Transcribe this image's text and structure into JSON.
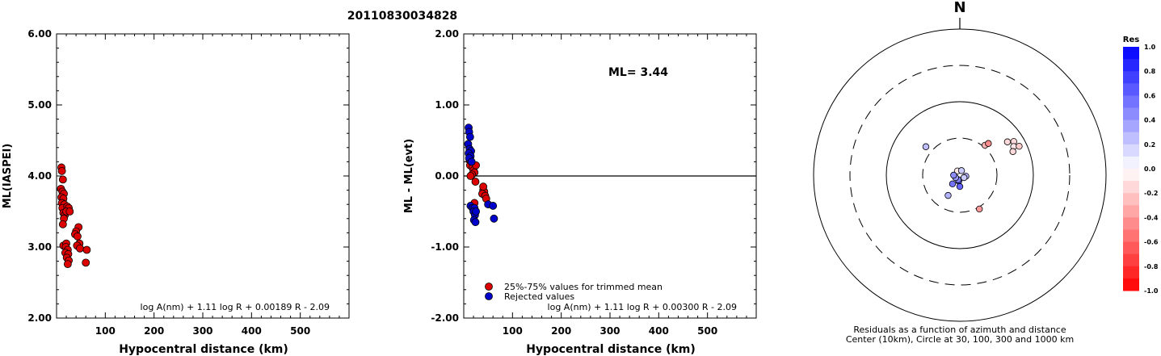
{
  "title": "20110830034828",
  "chart_data": [
    {
      "type": "scatter",
      "ylabel": "ML(IASPEI)",
      "xlabel": "Hypocentral distance (km)",
      "xlim": [
        0,
        600
      ],
      "ylim": [
        2.0,
        6.0
      ],
      "xticks": [
        "100",
        "200",
        "300",
        "400",
        "500"
      ],
      "yticks": [
        "2.00",
        "3.00",
        "4.00",
        "5.00",
        "6.00"
      ],
      "formula": "log A(nm) + 1.11 log R + 0.00189 R - 2.09",
      "series": [
        {
          "color": "#dd0000",
          "points": [
            [
              10,
              4.12
            ],
            [
              11,
              4.07
            ],
            [
              13,
              3.95
            ],
            [
              9,
              3.82
            ],
            [
              12,
              3.78
            ],
            [
              15,
              3.75
            ],
            [
              10,
              3.7
            ],
            [
              14,
              3.68
            ],
            [
              11,
              3.62
            ],
            [
              16,
              3.6
            ],
            [
              12,
              3.55
            ],
            [
              14,
              3.48
            ],
            [
              17,
              3.45
            ],
            [
              15,
              3.4
            ],
            [
              13,
              3.32
            ],
            [
              22,
              3.57
            ],
            [
              25,
              3.55
            ],
            [
              20,
              3.5
            ],
            [
              27,
              3.5
            ],
            [
              14,
              3.02
            ],
            [
              20,
              3.05
            ],
            [
              19,
              3.0
            ],
            [
              23,
              2.96
            ],
            [
              18,
              2.92
            ],
            [
              24,
              2.9
            ],
            [
              21,
              2.85
            ],
            [
              25,
              2.81
            ],
            [
              23,
              2.76
            ],
            [
              45,
              3.28
            ],
            [
              40,
              3.22
            ],
            [
              38,
              3.18
            ],
            [
              43,
              3.15
            ],
            [
              47,
              3.05
            ],
            [
              42,
              3.02
            ],
            [
              48,
              2.98
            ],
            [
              62,
              2.96
            ],
            [
              60,
              2.78
            ]
          ]
        }
      ]
    },
    {
      "type": "scatter",
      "ylabel": "ML - ML(evt)",
      "xlabel": "Hypocentral distance (km)",
      "xlim": [
        0,
        600
      ],
      "ylim": [
        -2.0,
        2.0
      ],
      "xticks": [
        "100",
        "200",
        "300",
        "400",
        "500"
      ],
      "yticks": [
        "-2.00",
        "-1.00",
        "0.00",
        "1.00",
        "2.00"
      ],
      "annotation": "ML= 3.44",
      "formula": "log A(nm) + 1.11 log R + 0.00300 R - 2.09",
      "legend": [
        "25%-75% values for trimmed mean",
        "Rejected values"
      ],
      "series": [
        {
          "name": "25%-75% values for trimmed mean",
          "color": "#dd0000",
          "points": [
            [
              12,
              0.22
            ],
            [
              15,
              0.2
            ],
            [
              13,
              0.15
            ],
            [
              18,
              0.12
            ],
            [
              20,
              0.08
            ],
            [
              22,
              0.05
            ],
            [
              25,
              0.15
            ],
            [
              17,
              0.02
            ],
            [
              14,
              0.0
            ],
            [
              24,
              -0.08
            ],
            [
              40,
              -0.2
            ],
            [
              42,
              -0.22
            ],
            [
              38,
              -0.25
            ],
            [
              44,
              -0.28
            ],
            [
              46,
              -0.32
            ],
            [
              40,
              -0.15
            ],
            [
              22,
              -0.38
            ]
          ]
        },
        {
          "name": "Rejected values",
          "color": "#0000cc",
          "points": [
            [
              10,
              0.68
            ],
            [
              11,
              0.62
            ],
            [
              13,
              0.55
            ],
            [
              9,
              0.45
            ],
            [
              12,
              0.38
            ],
            [
              15,
              0.35
            ],
            [
              10,
              0.32
            ],
            [
              14,
              0.28
            ],
            [
              11,
              0.25
            ],
            [
              16,
              0.2
            ],
            [
              14,
              -0.42
            ],
            [
              18,
              -0.45
            ],
            [
              22,
              -0.45
            ],
            [
              20,
              -0.5
            ],
            [
              23,
              -0.55
            ],
            [
              21,
              -0.62
            ],
            [
              24,
              -0.65
            ],
            [
              50,
              -0.4
            ],
            [
              60,
              -0.42
            ],
            [
              62,
              -0.6
            ],
            [
              25,
              -0.5
            ]
          ]
        }
      ]
    },
    {
      "type": "scatter",
      "subtype": "polar",
      "north_label": "N",
      "caption": [
        "Residuals as a function of azimuth and distance",
        "Center (10km), Circle at 30, 100, 300 and 1000 km"
      ],
      "rings_km": [
        30,
        100,
        300,
        1000
      ],
      "colorbar": {
        "title": "Res",
        "labels": [
          "1.0",
          "0.8",
          "0.6",
          "0.4",
          "0.2",
          "0.0",
          "-0.2",
          "-0.4",
          "-0.6",
          "-0.8",
          "-1.0"
        ],
        "positive_color": "#0000ff",
        "negative_color": "#ff0000"
      },
      "stations": [
        {
          "azimuth_deg": 55,
          "distance_km": 60,
          "residual": -0.15
        },
        {
          "azimuth_deg": 58,
          "distance_km": 72,
          "residual": -0.15
        },
        {
          "azimuth_deg": 62,
          "distance_km": 66,
          "residual": -0.1
        },
        {
          "azimuth_deg": 64,
          "distance_km": 78,
          "residual": -0.2
        },
        {
          "azimuth_deg": 66,
          "distance_km": 60,
          "residual": -0.15
        },
        {
          "azimuth_deg": 40,
          "distance_km": 32,
          "residual": -0.3
        },
        {
          "azimuth_deg": 42,
          "distance_km": 36,
          "residual": -0.45
        },
        {
          "azimuth_deg": 310,
          "distance_km": 38,
          "residual": 0.25
        },
        {
          "azimuth_deg": 150,
          "distance_km": 32,
          "residual": -0.4
        },
        {
          "azimuth_deg": 190,
          "distance_km": 12,
          "residual": 0.65
        },
        {
          "azimuth_deg": 200,
          "distance_km": 10,
          "residual": 0.5
        },
        {
          "azimuth_deg": 220,
          "distance_km": 14,
          "residual": 0.55
        },
        {
          "azimuth_deg": 240,
          "distance_km": 9,
          "residual": 0.4
        },
        {
          "azimuth_deg": 100,
          "distance_km": 12,
          "residual": 0.3
        },
        {
          "azimuth_deg": 120,
          "distance_km": 10,
          "residual": 0.2
        },
        {
          "azimuth_deg": 180,
          "distance_km": 14,
          "residual": 0.6
        },
        {
          "azimuth_deg": 330,
          "distance_km": 6,
          "residual": -0.1
        },
        {
          "azimuth_deg": 20,
          "distance_km": 8,
          "residual": 0.2
        },
        {
          "azimuth_deg": 270,
          "distance_km": 12,
          "residual": 0.45
        },
        {
          "azimuth_deg": 210,
          "distance_km": 20,
          "residual": 0.3
        }
      ]
    }
  ]
}
